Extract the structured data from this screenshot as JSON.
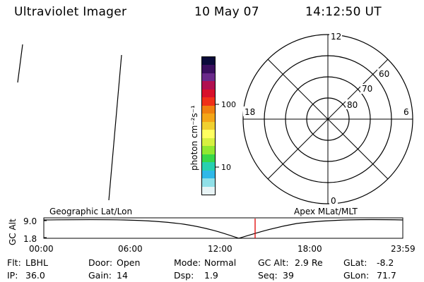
{
  "header": {
    "title": "Ultraviolet Imager",
    "date": "10 May 07",
    "time": "14:12:50 UT"
  },
  "colorbar": {
    "label": "photon cm⁻²s⁻¹",
    "ticks": [
      "100",
      "10"
    ],
    "colors": [
      "#0a0a3a",
      "#3a0f5e",
      "#6a2a8a",
      "#b01050",
      "#d8102a",
      "#f03018",
      "#f08010",
      "#f4a618",
      "#f0d030",
      "#ffff60",
      "#d6f040",
      "#90e830",
      "#38d848",
      "#28d0b0",
      "#30b8e8",
      "#90e0e8",
      "#e8f4f6"
    ]
  },
  "polar_plot": {
    "mlt_labels": [
      "12",
      "18",
      "6",
      "0"
    ],
    "lat_labels": [
      "60",
      "70",
      "80"
    ]
  },
  "timeline": {
    "left_label": "Geographic Lat/Lon",
    "right_label": "Apex MLat/MLT",
    "y_axis_label": "GC Alt",
    "y_ticks": [
      "9.0",
      "1.8"
    ],
    "x_ticks": [
      "00:00",
      "06:00",
      "12:00",
      "18:00",
      "23:59"
    ],
    "marker_color": "#e00000",
    "marker_time": "14:12:50"
  },
  "status": {
    "flt_label": "Flt:",
    "flt_value": "LBHL",
    "door_label": "Door:",
    "door_value": "Open",
    "mode_label": "Mode:",
    "mode_value": "Normal",
    "gcalt_label": "GC Alt:",
    "gcalt_value": "2.9 Re",
    "glat_label": "GLat:",
    "glat_value": "-8.2",
    "ip_label": "IP:",
    "ip_value": "36.0",
    "gain_label": "Gain:",
    "gain_value": "14",
    "dsp_label": "Dsp:",
    "dsp_value": "1.9",
    "seq_label": "Seq:",
    "seq_value": "39",
    "glon_label": "GLon:",
    "glon_value": "71.7"
  }
}
